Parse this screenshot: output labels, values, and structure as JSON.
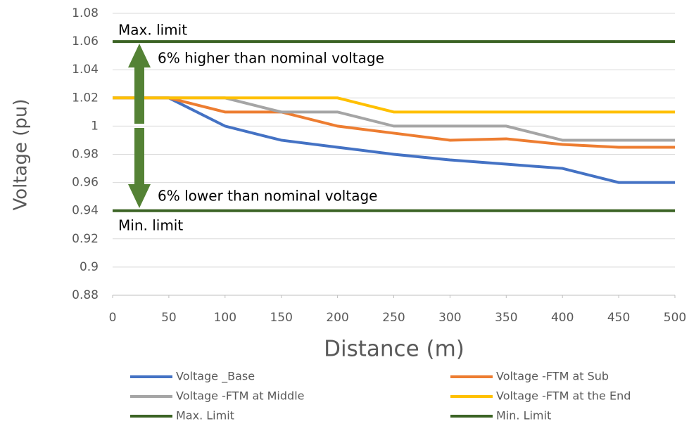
{
  "chart_data": {
    "type": "line",
    "x_label": "Distance (m)",
    "y_label": "Voltage (pu)",
    "x": [
      0,
      50,
      100,
      150,
      200,
      250,
      300,
      350,
      400,
      450,
      500
    ],
    "xlim": [
      0,
      500
    ],
    "xticks": [
      0,
      50,
      100,
      150,
      200,
      250,
      300,
      350,
      400,
      450,
      500
    ],
    "ylim": [
      0.88,
      1.08
    ],
    "yticks": [
      0.88,
      0.9,
      0.92,
      0.94,
      0.96,
      0.98,
      1,
      1.02,
      1.04,
      1.06,
      1.08
    ],
    "grid": true,
    "annotations": [
      "Max. limit",
      "Min. limit",
      "6% higher than nominal voltage",
      "6% lower than nominal voltage"
    ],
    "series": [
      {
        "name": "Voltage _Base",
        "color": "#4472c4",
        "values": [
          1.02,
          1.02,
          1.0,
          0.99,
          0.985,
          0.98,
          0.976,
          0.973,
          0.97,
          0.96,
          0.96
        ]
      },
      {
        "name": "Voltage -FTM at Sub",
        "color": "#ed7d31",
        "values": [
          1.02,
          1.02,
          1.01,
          1.01,
          1.0,
          0.995,
          0.99,
          0.991,
          0.987,
          0.985,
          0.985
        ]
      },
      {
        "name": "Voltage -FTM at Middle",
        "color": "#a5a5a5",
        "values": [
          1.02,
          1.02,
          1.02,
          1.01,
          1.01,
          1.0,
          1.0,
          1.0,
          0.99,
          0.99,
          0.99
        ]
      },
      {
        "name": "Voltage -FTM at the End",
        "color": "#ffc000",
        "values": [
          1.02,
          1.02,
          1.02,
          1.02,
          1.02,
          1.01,
          1.01,
          1.01,
          1.01,
          1.01,
          1.01
        ]
      },
      {
        "name": "Max. Limit",
        "color": "#3b6324",
        "values": [
          1.06,
          1.06,
          1.06,
          1.06,
          1.06,
          1.06,
          1.06,
          1.06,
          1.06,
          1.06,
          1.06
        ]
      },
      {
        "name": "Min. Limit",
        "color": "#3b6324",
        "values": [
          0.94,
          0.94,
          0.94,
          0.94,
          0.94,
          0.94,
          0.94,
          0.94,
          0.94,
          0.94,
          0.94
        ]
      }
    ]
  }
}
